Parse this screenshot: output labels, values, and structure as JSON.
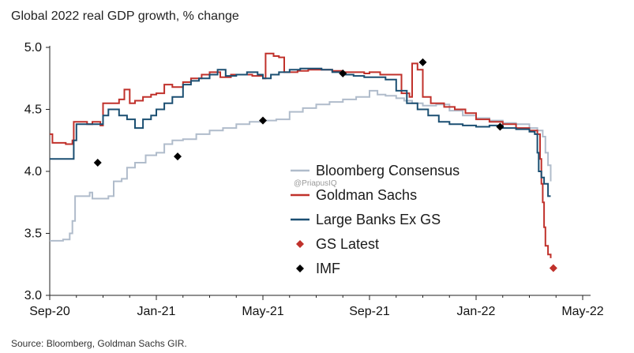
{
  "chart_data": {
    "type": "line",
    "title": "Global 2022 real GDP growth, % change",
    "source": "Source: Bloomberg, Goldman Sachs GIR.",
    "watermark": "@PriapusIQ",
    "x_start": "2020-09-01",
    "x_end": "2022-05-01",
    "xlim_months": [
      0,
      20
    ],
    "ylim": [
      3.0,
      5.0
    ],
    "y_ticks": [
      {
        "value": 3.0,
        "label": "3.0"
      },
      {
        "value": 3.5,
        "label": "3.5"
      },
      {
        "value": 4.0,
        "label": "4.0"
      },
      {
        "value": 4.5,
        "label": "4.5"
      },
      {
        "value": 5.0,
        "label": "5.0"
      }
    ],
    "x_ticks": [
      {
        "month": 0,
        "label": "Sep-20"
      },
      {
        "month": 4,
        "label": "Jan-21"
      },
      {
        "month": 8,
        "label": "May-21"
      },
      {
        "month": 12,
        "label": "Sep-21"
      },
      {
        "month": 16,
        "label": "Jan-22"
      },
      {
        "month": 20,
        "label": "May-22"
      }
    ],
    "series": [
      {
        "name": "Bloomberg Consensus",
        "color": "#b0bccb",
        "style": "line",
        "points": [
          [
            0,
            3.44
          ],
          [
            0.5,
            3.45
          ],
          [
            0.75,
            3.5
          ],
          [
            0.85,
            3.6
          ],
          [
            0.95,
            3.8
          ],
          [
            1.5,
            3.83
          ],
          [
            1.6,
            3.78
          ],
          [
            2.2,
            3.8
          ],
          [
            2.4,
            3.92
          ],
          [
            2.7,
            3.94
          ],
          [
            2.9,
            4.03
          ],
          [
            3.2,
            4.07
          ],
          [
            3.6,
            4.13
          ],
          [
            4.0,
            4.15
          ],
          [
            4.3,
            4.22
          ],
          [
            4.6,
            4.25
          ],
          [
            5.0,
            4.26
          ],
          [
            5.5,
            4.3
          ],
          [
            6.0,
            4.33
          ],
          [
            6.5,
            4.35
          ],
          [
            7.0,
            4.38
          ],
          [
            7.5,
            4.4
          ],
          [
            8.0,
            4.41
          ],
          [
            8.5,
            4.42
          ],
          [
            9.0,
            4.48
          ],
          [
            9.5,
            4.51
          ],
          [
            10.0,
            4.54
          ],
          [
            10.5,
            4.56
          ],
          [
            11.0,
            4.58
          ],
          [
            11.5,
            4.6
          ],
          [
            12.0,
            4.65
          ],
          [
            12.3,
            4.62
          ],
          [
            12.6,
            4.61
          ],
          [
            13.0,
            4.59
          ],
          [
            13.3,
            4.57
          ],
          [
            13.6,
            4.55
          ],
          [
            14.0,
            4.53
          ],
          [
            14.5,
            4.54
          ],
          [
            15.0,
            4.49
          ],
          [
            15.5,
            4.45
          ],
          [
            16.0,
            4.43
          ],
          [
            16.5,
            4.41
          ],
          [
            17.0,
            4.39
          ],
          [
            17.5,
            4.38
          ],
          [
            18.0,
            4.35
          ],
          [
            18.3,
            4.33
          ],
          [
            18.5,
            4.28
          ],
          [
            18.6,
            4.15
          ],
          [
            18.7,
            4.05
          ],
          [
            18.8,
            3.92
          ]
        ]
      },
      {
        "name": "Goldman Sachs",
        "color": "#c0312b",
        "style": "line",
        "points": [
          [
            0,
            4.3
          ],
          [
            0.1,
            4.23
          ],
          [
            0.6,
            4.22
          ],
          [
            0.85,
            4.25
          ],
          [
            0.9,
            4.4
          ],
          [
            1.4,
            4.38
          ],
          [
            1.6,
            4.4
          ],
          [
            1.9,
            4.37
          ],
          [
            2.0,
            4.55
          ],
          [
            2.6,
            4.58
          ],
          [
            2.8,
            4.66
          ],
          [
            3.0,
            4.55
          ],
          [
            3.2,
            4.57
          ],
          [
            3.5,
            4.6
          ],
          [
            3.8,
            4.62
          ],
          [
            4.0,
            4.63
          ],
          [
            4.3,
            4.7
          ],
          [
            4.6,
            4.68
          ],
          [
            5.0,
            4.72
          ],
          [
            5.3,
            4.75
          ],
          [
            5.7,
            4.78
          ],
          [
            6.0,
            4.8
          ],
          [
            6.4,
            4.76
          ],
          [
            6.8,
            4.78
          ],
          [
            7.2,
            4.78
          ],
          [
            7.6,
            4.77
          ],
          [
            8.0,
            4.75
          ],
          [
            8.1,
            4.95
          ],
          [
            8.4,
            4.93
          ],
          [
            8.6,
            4.92
          ],
          [
            8.8,
            4.8
          ],
          [
            9.3,
            4.81
          ],
          [
            9.7,
            4.82
          ],
          [
            10.2,
            4.82
          ],
          [
            10.6,
            4.81
          ],
          [
            11.0,
            4.8
          ],
          [
            11.5,
            4.8
          ],
          [
            11.8,
            4.79
          ],
          [
            12.0,
            4.8
          ],
          [
            12.4,
            4.78
          ],
          [
            12.8,
            4.78
          ],
          [
            13.2,
            4.63
          ],
          [
            13.5,
            4.6
          ],
          [
            13.6,
            4.87
          ],
          [
            13.8,
            4.82
          ],
          [
            14.0,
            4.6
          ],
          [
            14.3,
            4.55
          ],
          [
            14.8,
            4.52
          ],
          [
            15.2,
            4.5
          ],
          [
            15.6,
            4.47
          ],
          [
            16.0,
            4.42
          ],
          [
            16.5,
            4.4
          ],
          [
            17.0,
            4.38
          ],
          [
            17.5,
            4.35
          ],
          [
            18.0,
            4.33
          ],
          [
            18.3,
            4.3
          ],
          [
            18.4,
            4.1
          ],
          [
            18.45,
            3.9
          ],
          [
            18.5,
            3.75
          ],
          [
            18.55,
            3.55
          ],
          [
            18.6,
            3.4
          ],
          [
            18.7,
            3.33
          ],
          [
            18.8,
            3.3
          ]
        ]
      },
      {
        "name": "Large Banks Ex GS",
        "color": "#1b4f72",
        "style": "line",
        "points": [
          [
            0,
            4.1
          ],
          [
            0.8,
            4.1
          ],
          [
            0.9,
            4.25
          ],
          [
            1.0,
            4.38
          ],
          [
            1.6,
            4.38
          ],
          [
            2.0,
            4.45
          ],
          [
            2.2,
            4.5
          ],
          [
            2.6,
            4.45
          ],
          [
            2.9,
            4.42
          ],
          [
            3.2,
            4.35
          ],
          [
            3.5,
            4.42
          ],
          [
            3.8,
            4.45
          ],
          [
            4.0,
            4.5
          ],
          [
            4.3,
            4.55
          ],
          [
            4.6,
            4.6
          ],
          [
            5.0,
            4.7
          ],
          [
            5.3,
            4.73
          ],
          [
            5.6,
            4.75
          ],
          [
            6.0,
            4.78
          ],
          [
            6.3,
            4.82
          ],
          [
            6.6,
            4.77
          ],
          [
            7.0,
            4.78
          ],
          [
            7.4,
            4.8
          ],
          [
            7.8,
            4.78
          ],
          [
            8.0,
            4.75
          ],
          [
            8.3,
            4.78
          ],
          [
            8.6,
            4.8
          ],
          [
            9.0,
            4.82
          ],
          [
            9.4,
            4.83
          ],
          [
            9.8,
            4.83
          ],
          [
            10.2,
            4.82
          ],
          [
            10.6,
            4.8
          ],
          [
            11.0,
            4.78
          ],
          [
            11.4,
            4.77
          ],
          [
            11.8,
            4.76
          ],
          [
            12.2,
            4.76
          ],
          [
            12.6,
            4.74
          ],
          [
            13.0,
            4.65
          ],
          [
            13.4,
            4.55
          ],
          [
            13.8,
            4.5
          ],
          [
            14.2,
            4.45
          ],
          [
            14.6,
            4.4
          ],
          [
            15.0,
            4.38
          ],
          [
            15.5,
            4.37
          ],
          [
            16.0,
            4.36
          ],
          [
            16.5,
            4.37
          ],
          [
            17.0,
            4.35
          ],
          [
            17.5,
            4.34
          ],
          [
            18.0,
            4.32
          ],
          [
            18.2,
            4.3
          ],
          [
            18.3,
            4.15
          ],
          [
            18.35,
            4.0
          ],
          [
            18.45,
            3.95
          ],
          [
            18.55,
            3.9
          ],
          [
            18.7,
            3.8
          ],
          [
            18.8,
            3.8
          ]
        ]
      },
      {
        "name": "GS Latest",
        "color": "#c0312b",
        "style": "marker-diamond",
        "points": [
          [
            18.9,
            3.22
          ]
        ]
      },
      {
        "name": "IMF",
        "color": "#000000",
        "style": "marker-diamond",
        "points": [
          [
            1.8,
            4.07
          ],
          [
            4.8,
            4.12
          ],
          [
            8.0,
            4.41
          ],
          [
            11.0,
            4.79
          ],
          [
            14.0,
            4.88
          ],
          [
            16.9,
            4.36
          ]
        ]
      }
    ],
    "legend": {
      "position": "center-right",
      "entries": [
        {
          "label": "Bloomberg Consensus",
          "symbol": "line",
          "color": "#b0bccb"
        },
        {
          "label": "Goldman Sachs",
          "symbol": "line",
          "color": "#c0312b"
        },
        {
          "label": "Large Banks Ex GS",
          "symbol": "line",
          "color": "#1b4f72"
        },
        {
          "label": "GS Latest",
          "symbol": "diamond",
          "color": "#c0312b"
        },
        {
          "label": "IMF",
          "symbol": "diamond",
          "color": "#000000"
        }
      ]
    }
  }
}
